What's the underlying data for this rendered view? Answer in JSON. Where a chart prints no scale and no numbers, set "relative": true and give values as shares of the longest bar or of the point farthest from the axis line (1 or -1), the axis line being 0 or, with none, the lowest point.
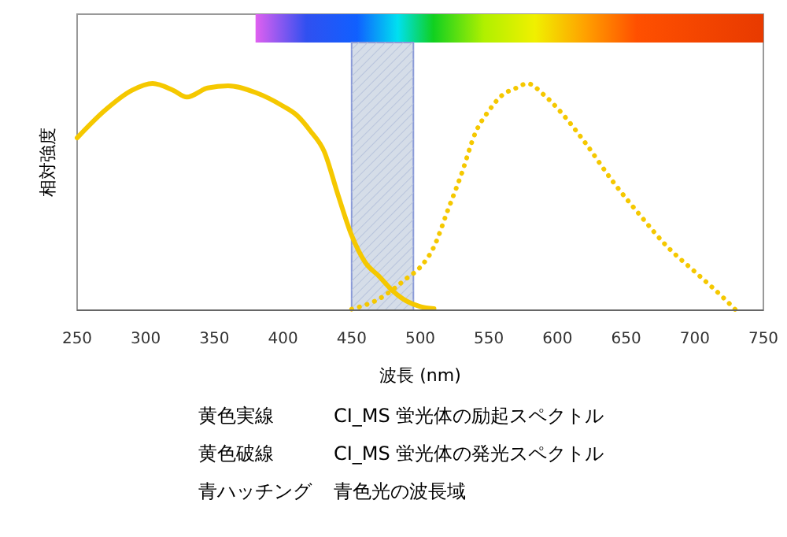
{
  "chart_data": {
    "type": "line",
    "relative": true,
    "ylabel": "相対強度",
    "xlabel": "波長 (nm)",
    "xlim": [
      250,
      750
    ],
    "xticks": [
      250,
      300,
      350,
      400,
      450,
      500,
      550,
      600,
      650,
      700,
      750
    ],
    "series": [
      {
        "color": "#f5c800",
        "line_style": "solid",
        "x": [
          250,
          270,
          290,
          305,
          320,
          330,
          345,
          360,
          380,
          400,
          410,
          420,
          430,
          440,
          450,
          460,
          470,
          480,
          490,
          500,
          510
        ],
        "values": [
          0.76,
          0.88,
          0.97,
          1.0,
          0.97,
          0.94,
          0.98,
          0.99,
          0.96,
          0.9,
          0.86,
          0.79,
          0.7,
          0.51,
          0.33,
          0.21,
          0.15,
          0.085,
          0.04,
          0.016,
          0.007
        ]
      },
      {
        "color": "#f5c800",
        "line_style": "dotted",
        "x": [
          450,
          470,
          490,
          500,
          510,
          520,
          530,
          540,
          550,
          560,
          570,
          578,
          590,
          600,
          620,
          640,
          660,
          680,
          700,
          720,
          730
        ],
        "values": [
          0.005,
          0.05,
          0.14,
          0.19,
          0.28,
          0.44,
          0.6,
          0.78,
          0.88,
          0.95,
          0.98,
          1.0,
          0.95,
          0.89,
          0.74,
          0.57,
          0.42,
          0.28,
          0.17,
          0.06,
          0.0
        ]
      }
    ],
    "bands": [
      {
        "axis": "x",
        "from": 450,
        "to": 495,
        "color": "#d5dde8"
      }
    ],
    "annotations": [
      "黄色実線",
      "CI_MS 蛍光体の励起スペクトル",
      "黄色破線",
      "CI_MS 蛍光体の発光スペクトル",
      "青ハッチング",
      "青色光の波長域"
    ]
  }
}
